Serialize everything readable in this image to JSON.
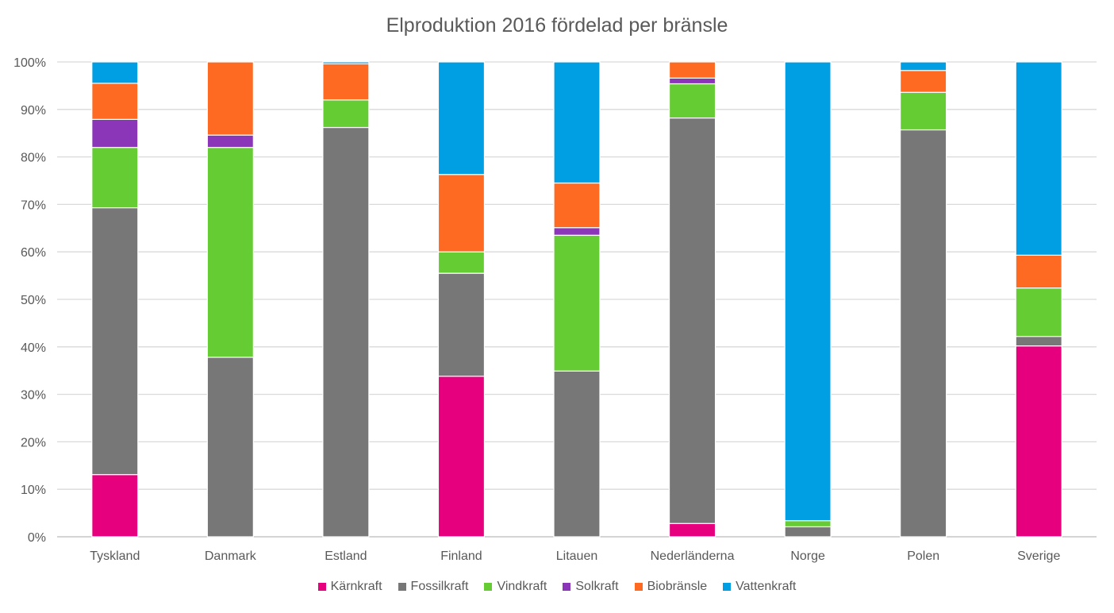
{
  "chart_data": {
    "type": "bar",
    "stacked": true,
    "title": "Elproduktion 2016 fördelad per bränsle",
    "xlabel": "",
    "ylabel": "",
    "ylim": [
      0,
      100
    ],
    "yticks": [
      "0%",
      "10%",
      "20%",
      "30%",
      "40%",
      "50%",
      "60%",
      "70%",
      "80%",
      "90%",
      "100%"
    ],
    "grid": true,
    "legend_position": "bottom",
    "categories": [
      "Tyskland",
      "Danmark",
      "Estland",
      "Finland",
      "Litauen",
      "Nederländerna",
      "Norge",
      "Polen",
      "Sverige"
    ],
    "series": [
      {
        "name": "Kärnkraft",
        "color": "#e6007e",
        "values": [
          13.1,
          0,
          0,
          33.8,
          0,
          2.8,
          0,
          0,
          40.2
        ]
      },
      {
        "name": "Fossilkraft",
        "color": "#777777",
        "values": [
          56.2,
          37.8,
          86.2,
          21.7,
          34.9,
          85.4,
          2.1,
          85.7,
          2.0
        ]
      },
      {
        "name": "Vindkraft",
        "color": "#66cc33",
        "values": [
          12.7,
          44.2,
          5.8,
          4.5,
          28.6,
          7.2,
          1.3,
          7.9,
          10.2
        ]
      },
      {
        "name": "Solkraft",
        "color": "#8b35b8",
        "values": [
          5.9,
          2.6,
          0,
          0,
          1.6,
          1.2,
          0,
          0,
          0
        ]
      },
      {
        "name": "Biobränsle",
        "color": "#ff6a22",
        "values": [
          7.6,
          15.4,
          7.6,
          16.3,
          9.4,
          3.4,
          0,
          4.6,
          6.9
        ]
      },
      {
        "name": "Vattenkraft",
        "color": "#009fe3",
        "values": [
          4.5,
          0,
          0.4,
          23.7,
          25.5,
          0,
          96.6,
          1.8,
          40.7
        ]
      }
    ]
  }
}
